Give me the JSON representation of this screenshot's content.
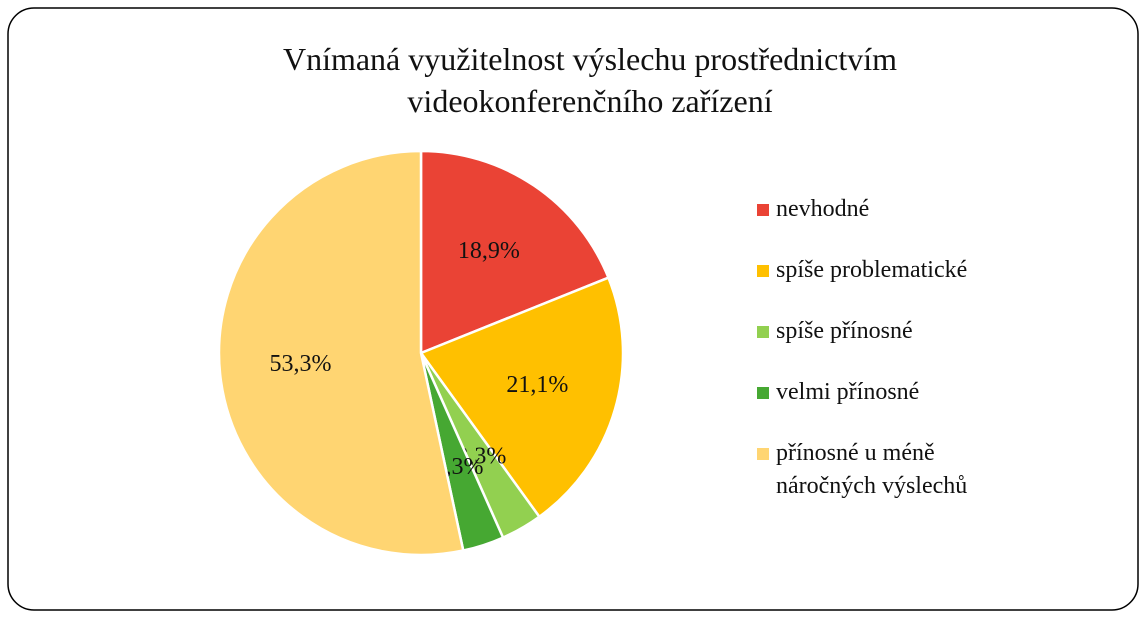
{
  "chart_data": {
    "type": "pie",
    "title": "Vnímaná využitelnost výslechu prostřednictvím videokonferenčního zařízení",
    "categories": [
      "nevhodné",
      "spíše problematické",
      "spíše přínosné",
      "velmi přínosné",
      "přínosné u méně náročných výslechů"
    ],
    "values": [
      18.9,
      21.1,
      3.3,
      3.3,
      53.3
    ],
    "value_labels": [
      "18,9%",
      "21,1%",
      "3,3%",
      "3,3%",
      "53,3%"
    ],
    "colors": [
      "#ea4335",
      "#ffc000",
      "#92d050",
      "#46a832",
      "#ffd572"
    ],
    "legend": "right"
  }
}
